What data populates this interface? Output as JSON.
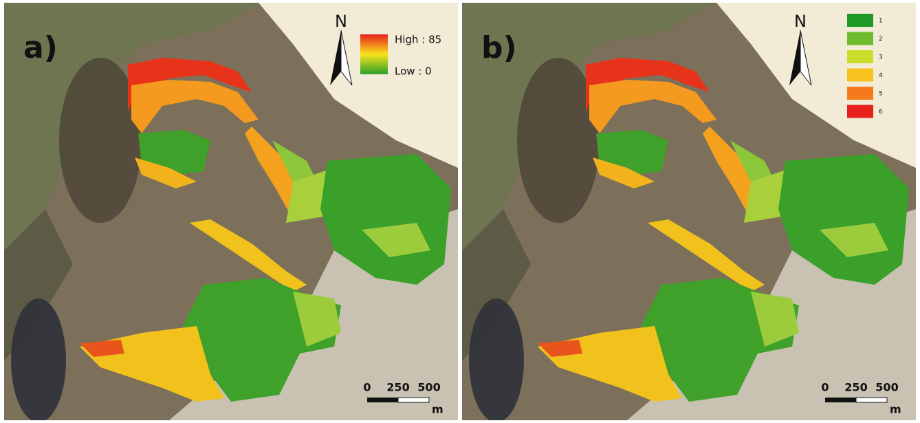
{
  "panels": [
    {
      "label": "a)",
      "north": "N",
      "legend": {
        "high": "High : 85",
        "low": "Low : 0"
      },
      "scale": {
        "ticks": [
          0,
          250,
          500
        ],
        "unit": "m"
      }
    },
    {
      "label": "b)",
      "north": "N",
      "legend": {
        "classes": [
          {
            "label": 1,
            "color": "#1f9a27"
          },
          {
            "label": 2,
            "color": "#6dbb2c"
          },
          {
            "label": 3,
            "color": "#c9dd2a"
          },
          {
            "label": 4,
            "color": "#f7c21e"
          },
          {
            "label": 5,
            "color": "#f47a1c"
          },
          {
            "label": 6,
            "color": "#e8211c"
          }
        ]
      },
      "scale": {
        "ticks": [
          0,
          250,
          500
        ],
        "unit": "m"
      }
    }
  ]
}
